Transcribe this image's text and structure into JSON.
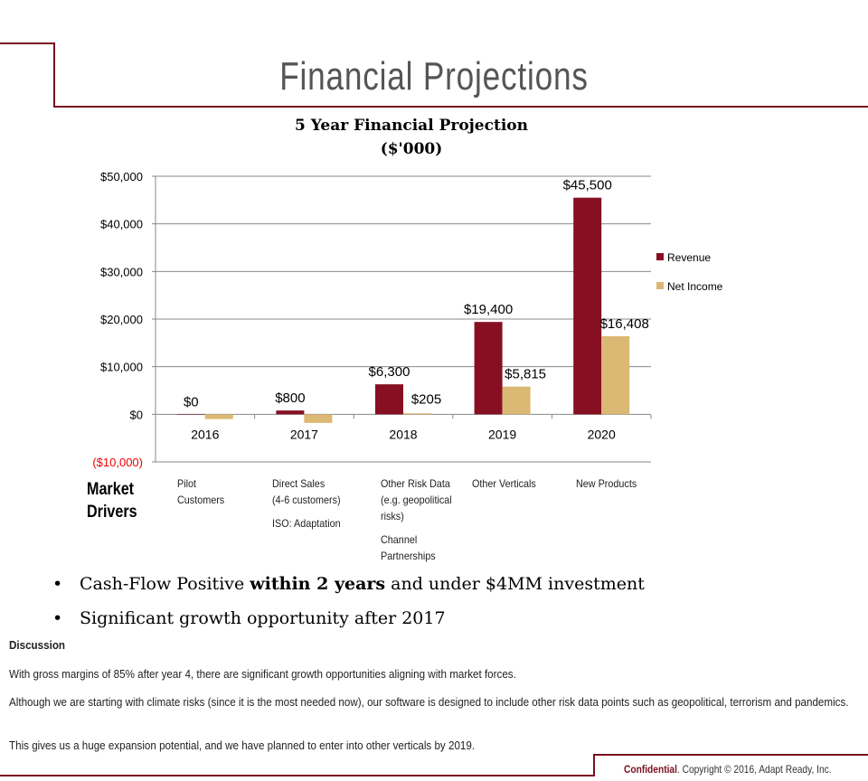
{
  "page": {
    "title": "Financial Projections"
  },
  "chart_data": {
    "type": "bar",
    "title": "5 Year Financial Projection",
    "subtitle": "($'000)",
    "categories": [
      "2016",
      "2017",
      "2018",
      "2019",
      "2020"
    ],
    "series": [
      {
        "name": "Revenue",
        "color": "#861022",
        "values": [
          0,
          800,
          6300,
          19400,
          45500
        ],
        "labels": [
          "$0",
          "$800",
          "$6,300",
          "$19,400",
          "$45,500"
        ]
      },
      {
        "name": "Net Income",
        "color": "#dbb873",
        "values": [
          -1000,
          -1800,
          205,
          5815,
          16408
        ],
        "labels": [
          "",
          "",
          "$205",
          "$5,815",
          "$16,408"
        ]
      }
    ],
    "ylim": [
      -10000,
      50000
    ],
    "yticks": [
      50000,
      40000,
      30000,
      20000,
      10000,
      0,
      -10000
    ],
    "ytick_labels": [
      "$50,000",
      "$40,000",
      "$30,000",
      "$20,000",
      "$10,000",
      "$0",
      "($10,000)"
    ],
    "grid": true,
    "legend": "right"
  },
  "drivers": {
    "label": "Market Drivers",
    "items": [
      [
        "Pilot",
        "Customers"
      ],
      [
        "Direct Sales",
        "(4-6 customers)",
        "",
        "ISO: Adaptation"
      ],
      [
        "Other Risk Data",
        "(e.g. geopolitical",
        "risks)",
        "",
        "Channel",
        "Partnerships"
      ],
      [
        "Other Verticals"
      ],
      [
        "New Products"
      ]
    ]
  },
  "bullets": [
    {
      "pre": "Cash-Flow Positive ",
      "bold": "within 2 years",
      "post": " and under $4MM investment"
    },
    {
      "pre": "Significant growth opportunity after 2017",
      "bold": "",
      "post": ""
    }
  ],
  "bullet_char": "•",
  "discussion": {
    "heading": "Discussion",
    "paragraphs": [
      "With gross margins of 85% after year 4, there are significant growth opportunities aligning with market forces.",
      "Although we are starting with climate risks (since it is the most needed now), our software is designed to include other risk data points such as geopolitical, terrorism and pandemics.",
      "This gives us a huge expansion potential, and we have planned to enter into other verticals by 2019."
    ]
  },
  "footer": {
    "confidential": "Confidential",
    "rest": ". Copyright © 2016, Adapt Ready, Inc."
  }
}
